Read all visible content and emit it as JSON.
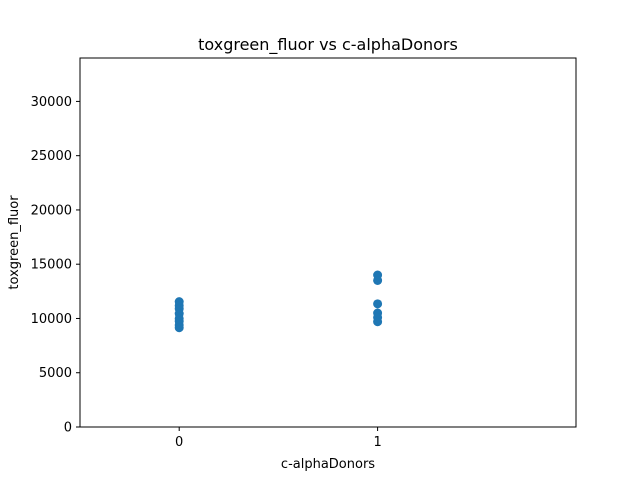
{
  "chart_data": {
    "type": "scatter",
    "title": "toxgreen_fluor vs c-alphaDonors",
    "xlabel": "c-alphaDonors",
    "ylabel": "toxgreen_fluor",
    "xlim": [
      -0.5,
      2.0
    ],
    "ylim": [
      0,
      34000
    ],
    "xticks": [
      0,
      1
    ],
    "yticks": [
      0,
      5000,
      10000,
      15000,
      20000,
      25000,
      30000
    ],
    "grid": false,
    "series": [
      {
        "color": "#1f77b4",
        "points": [
          {
            "x": 0,
            "y": 11550
          },
          {
            "x": 0,
            "y": 11200
          },
          {
            "x": 0,
            "y": 10900
          },
          {
            "x": 0,
            "y": 10450
          },
          {
            "x": 0,
            "y": 10000
          },
          {
            "x": 0,
            "y": 9750
          },
          {
            "x": 0,
            "y": 9400
          },
          {
            "x": 0,
            "y": 9150
          },
          {
            "x": 1,
            "y": 14000
          },
          {
            "x": 1,
            "y": 13500
          },
          {
            "x": 1,
            "y": 11350
          },
          {
            "x": 1,
            "y": 10500
          },
          {
            "x": 1,
            "y": 10100
          },
          {
            "x": 1,
            "y": 9700
          }
        ]
      }
    ]
  }
}
